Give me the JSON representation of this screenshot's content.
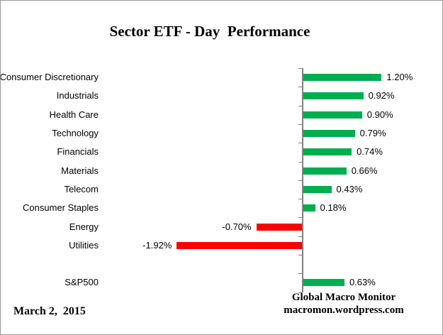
{
  "title": "Sector ETF - Day  Performance",
  "footer": {
    "date": "March 2,  2015",
    "attribution_line1": "Global Macro Monitor",
    "attribution_line2": "macromon.wordpress.com"
  },
  "chart_data": {
    "type": "bar",
    "orientation": "horizontal",
    "title": "Sector ETF - Day  Performance",
    "categories": [
      "Consumer Discretionary",
      "Industrials",
      "Health Care",
      "Technology",
      "Financials",
      "Materials",
      "Telecom",
      "Consumer Staples",
      "Energy",
      "Utilities",
      "",
      "S&P500"
    ],
    "values": [
      1.2,
      0.92,
      0.9,
      0.79,
      0.74,
      0.66,
      0.43,
      0.18,
      -0.7,
      -1.92,
      null,
      0.63
    ],
    "value_labels": [
      "1.20%",
      "0.92%",
      "0.90%",
      "0.79%",
      "0.74%",
      "0.66%",
      "0.43%",
      "0.18%",
      "-0.70%",
      "-1.92%",
      "",
      "0.63%"
    ],
    "positive_color": "#00AE4F",
    "negative_color": "#FF0000",
    "axis_color": "#808080",
    "grid": false,
    "legend": false,
    "xlim": [
      -2.0,
      1.6
    ]
  }
}
